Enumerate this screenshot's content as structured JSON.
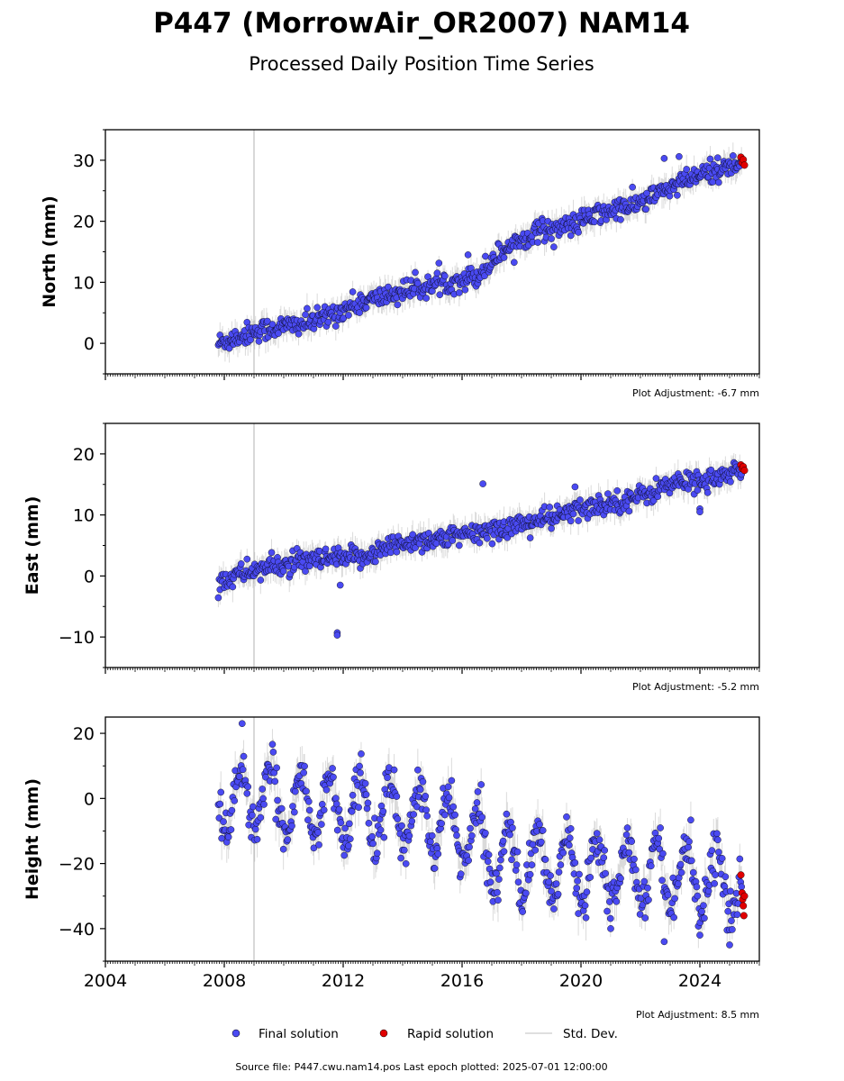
{
  "figure": {
    "title": "P447 (MorrowAir_OR2007) NAM14",
    "subtitle": "Processed Daily Position Time Series",
    "footer": "Source file: P447.cwu.nam14.pos  Last epoch plotted: 2025-07-01 12:00:00"
  },
  "legend": {
    "placement": "bottom-center",
    "items": [
      {
        "label": "Final solution",
        "color": "#4a4af2"
      },
      {
        "label": "Rapid solution",
        "color": "#e00000"
      },
      {
        "label": "Std. Dev.",
        "color": "#cccccc"
      }
    ]
  },
  "colors": {
    "final": "#4a4af2",
    "rapid": "#e00000",
    "stddev": "#999999",
    "vline": "#cccccc"
  },
  "chart_data": [
    {
      "type": "scatter",
      "ylabel": "North (mm)",
      "adjustment": "Plot Adjustment: -6.7 mm",
      "xlim": [
        2004,
        2026
      ],
      "ylim": [
        -5,
        35
      ],
      "yticks": [
        0,
        10,
        20,
        30
      ],
      "xticks": [
        2004,
        2008,
        2012,
        2016,
        2020,
        2024
      ],
      "show_xtick_labels": false,
      "grid": false,
      "vline": 2009.0,
      "final_trend": [
        [
          2007.8,
          0
        ],
        [
          2009,
          2
        ],
        [
          2011,
          3.5
        ],
        [
          2012.5,
          6.5
        ],
        [
          2014,
          8.5
        ],
        [
          2015.5,
          10
        ],
        [
          2016.5,
          11
        ],
        [
          2017.3,
          15
        ],
        [
          2018.5,
          18.5
        ],
        [
          2019.5,
          19
        ],
        [
          2020.5,
          21
        ],
        [
          2022,
          23
        ],
        [
          2023,
          25.5
        ],
        [
          2024,
          27.5
        ],
        [
          2025.4,
          29.5
        ]
      ],
      "final_outliers": [
        [
          2022.8,
          30.3
        ],
        [
          2023.3,
          30.6
        ],
        [
          2024.6,
          30.4
        ],
        [
          2016.2,
          14.5
        ]
      ],
      "rapid": [
        [
          2025.38,
          30.5
        ],
        [
          2025.42,
          29.6
        ],
        [
          2025.46,
          30.1
        ],
        [
          2025.5,
          29.2
        ]
      ]
    },
    {
      "type": "scatter",
      "ylabel": "East (mm)",
      "adjustment": "Plot Adjustment: -5.2 mm",
      "xlim": [
        2004,
        2026
      ],
      "ylim": [
        -15,
        25
      ],
      "yticks": [
        -10,
        0,
        10,
        20
      ],
      "xticks": [
        2004,
        2008,
        2012,
        2016,
        2020,
        2024
      ],
      "show_xtick_labels": false,
      "grid": false,
      "vline": 2009.0,
      "final_trend": [
        [
          2007.8,
          -1
        ],
        [
          2009,
          1
        ],
        [
          2011,
          2.5
        ],
        [
          2012.5,
          3
        ],
        [
          2014,
          5.5
        ],
        [
          2016,
          6.5
        ],
        [
          2017.5,
          8
        ],
        [
          2019,
          9.5
        ],
        [
          2020.5,
          11.5
        ],
        [
          2022,
          13
        ],
        [
          2023,
          15
        ],
        [
          2024.5,
          16
        ],
        [
          2025.4,
          17
        ]
      ],
      "final_outliers": [
        [
          2011.8,
          -9.3
        ],
        [
          2011.8,
          -9.7
        ],
        [
          2016.7,
          15.1
        ],
        [
          2024.0,
          11.0
        ],
        [
          2024.0,
          10.5
        ],
        [
          2019.8,
          14.6
        ],
        [
          2011.9,
          -1.5
        ]
      ],
      "rapid": [
        [
          2025.38,
          18.2
        ],
        [
          2025.42,
          17.6
        ],
        [
          2025.46,
          17.9
        ],
        [
          2025.5,
          17.3
        ]
      ]
    },
    {
      "type": "scatter",
      "ylabel": "Height (mm)",
      "adjustment": "Plot Adjustment: 8.5 mm",
      "xlim": [
        2004,
        2026
      ],
      "ylim": [
        -50,
        25
      ],
      "yticks": [
        -40,
        -20,
        0,
        20
      ],
      "xticks": [
        2004,
        2008,
        2012,
        2016,
        2020,
        2024
      ],
      "xtick_labels": [
        "2004",
        "2008",
        "2012",
        "2016",
        "2020",
        "2024"
      ],
      "show_xtick_labels": true,
      "grid": false,
      "vline": 2009.0,
      "final_trend": [
        [
          2007.8,
          0
        ],
        [
          2010,
          -1
        ],
        [
          2012,
          -3
        ],
        [
          2014,
          -5
        ],
        [
          2016,
          -10
        ],
        [
          2017,
          -17
        ],
        [
          2018,
          -20
        ],
        [
          2020,
          -21
        ],
        [
          2022,
          -22
        ],
        [
          2024,
          -24
        ],
        [
          2025.4,
          -28
        ]
      ],
      "seasonal_amplitude": 10,
      "final_outliers": [
        [
          2008.6,
          23
        ],
        [
          2022.8,
          -44
        ],
        [
          2024.0,
          -42
        ],
        [
          2021.0,
          -40
        ],
        [
          2025.0,
          -45
        ]
      ],
      "rapid": [
        [
          2025.38,
          -23.5
        ],
        [
          2025.42,
          -29
        ],
        [
          2025.44,
          -31
        ],
        [
          2025.46,
          -33
        ],
        [
          2025.48,
          -36
        ],
        [
          2025.5,
          -30
        ]
      ]
    }
  ]
}
